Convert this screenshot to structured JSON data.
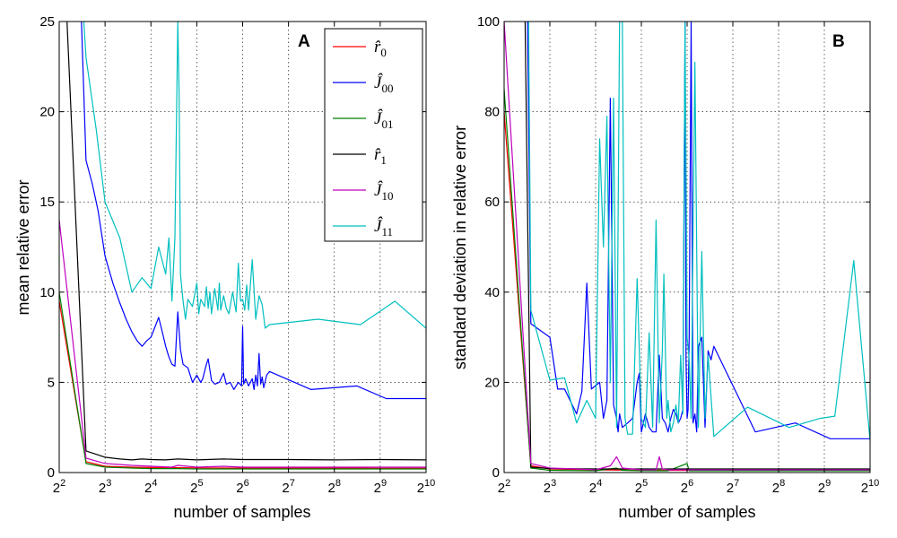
{
  "chart_data": [
    {
      "type": "line",
      "panel_label": "A",
      "xlabel": "number of samples",
      "ylabel": "mean relative error",
      "x_scale": "log2",
      "xlim": [
        4,
        1024
      ],
      "ylim": [
        0,
        25
      ],
      "x_ticks": [
        4,
        8,
        16,
        32,
        64,
        128,
        256,
        512,
        1024
      ],
      "x_tick_labels": [
        {
          "base": "2",
          "exp": "2"
        },
        {
          "base": "2",
          "exp": "3"
        },
        {
          "base": "2",
          "exp": "4"
        },
        {
          "base": "2",
          "exp": "5"
        },
        {
          "base": "2",
          "exp": "6"
        },
        {
          "base": "2",
          "exp": "7"
        },
        {
          "base": "2",
          "exp": "8"
        },
        {
          "base": "2",
          "exp": "9"
        },
        {
          "base": "2",
          "exp": "10"
        }
      ],
      "y_ticks": [
        0,
        5,
        10,
        15,
        20,
        25
      ],
      "y_tick_labels": [
        "0",
        "5",
        "10",
        "15",
        "20",
        "25"
      ],
      "grid": true,
      "legend_position": "top-right",
      "series": [
        {
          "name": "r0",
          "legend": {
            "base": "r̂",
            "sub": "0"
          },
          "color": "#ff0000",
          "x": [
            4,
            6,
            8,
            12,
            16,
            24,
            32,
            64,
            128,
            256,
            512,
            1024
          ],
          "y": [
            9.5,
            0.6,
            0.35,
            0.3,
            0.28,
            0.27,
            0.26,
            0.25,
            0.25,
            0.25,
            0.24,
            0.24
          ]
        },
        {
          "name": "J00",
          "legend": {
            "base": "Ĵ",
            "sub": "00"
          },
          "color": "#0000ff",
          "x": [
            5.6,
            6,
            6.6,
            7.2,
            8,
            9,
            10,
            11,
            12,
            13,
            14,
            15,
            16,
            18,
            19,
            20,
            21,
            22,
            23,
            24,
            25,
            26,
            28,
            30,
            32,
            34,
            35,
            37,
            38,
            40,
            42,
            45,
            48,
            50,
            53,
            56,
            60,
            63,
            64,
            65,
            67,
            70,
            72,
            74,
            76,
            78,
            80,
            82,
            84,
            86,
            88,
            92,
            96,
            180,
            360,
            560,
            1024
          ],
          "y": [
            25,
            17.3,
            16,
            14.5,
            12,
            10.5,
            9.4,
            8.5,
            7.8,
            7.3,
            7.0,
            7.3,
            7.5,
            8.6,
            7.8,
            7.0,
            6.4,
            6.0,
            5.9,
            8.9,
            6.8,
            6.0,
            5.8,
            5.0,
            5.4,
            5.0,
            5.2,
            6.0,
            6.3,
            5.1,
            4.9,
            5.0,
            5.5,
            4.9,
            5.0,
            4.6,
            5.0,
            4.8,
            8.1,
            4.9,
            5.2,
            4.8,
            5.0,
            5.2,
            4.6,
            5.4,
            4.8,
            6.6,
            4.9,
            5.3,
            4.7,
            5.4,
            5.6,
            4.6,
            4.8,
            4.1,
            4.1
          ]
        },
        {
          "name": "J01",
          "legend": {
            "base": "Ĵ",
            "sub": "01"
          },
          "color": "#008000",
          "x": [
            4,
            6,
            8,
            12,
            16,
            24,
            32,
            64,
            128,
            256,
            512,
            1024
          ],
          "y": [
            10.0,
            0.5,
            0.3,
            0.25,
            0.22,
            0.22,
            0.2,
            0.2,
            0.2,
            0.2,
            0.2,
            0.2
          ]
        },
        {
          "name": "r1",
          "legend": {
            "base": "r̂",
            "sub": "1"
          },
          "color": "#000000",
          "x": [
            4.5,
            6,
            8,
            10,
            12,
            14,
            16,
            20,
            24,
            32,
            48,
            64,
            128,
            256,
            512,
            1024
          ],
          "y": [
            25,
            1.2,
            0.85,
            0.75,
            0.7,
            0.75,
            0.72,
            0.7,
            0.75,
            0.7,
            0.75,
            0.72,
            0.72,
            0.7,
            0.72,
            0.7
          ]
        },
        {
          "name": "J10",
          "legend": {
            "base": "Ĵ",
            "sub": "10"
          },
          "color": "#bf00bf",
          "x": [
            4,
            6,
            8,
            12,
            16,
            22,
            24,
            32,
            48,
            64,
            128,
            256,
            512,
            1024
          ],
          "y": [
            14.0,
            0.8,
            0.5,
            0.4,
            0.35,
            0.3,
            0.4,
            0.3,
            0.35,
            0.3,
            0.3,
            0.3,
            0.3,
            0.3
          ]
        },
        {
          "name": "J11",
          "legend": {
            "base": "Ĵ",
            "sub": "11"
          },
          "color": "#00bfbf",
          "x": [
            5.8,
            6,
            7,
            8,
            10,
            12,
            14,
            16,
            18,
            20,
            21,
            22,
            23,
            24,
            24.5,
            25,
            26,
            27,
            28,
            30,
            32,
            33,
            34,
            36,
            37,
            38,
            39,
            40,
            42,
            44,
            45,
            46,
            48,
            50,
            52,
            55,
            58,
            60,
            62,
            64,
            66,
            68,
            70,
            74,
            78,
            82,
            86,
            90,
            96,
            200,
            380,
            640,
            1024
          ],
          "y": [
            25,
            23,
            19,
            15,
            13,
            10.0,
            10.8,
            10.2,
            12.5,
            11.0,
            13.0,
            9.5,
            13.0,
            25,
            21,
            11,
            9.5,
            8.5,
            9.6,
            9.2,
            10.5,
            8.8,
            9.6,
            9.2,
            10.3,
            9.1,
            10.0,
            8.8,
            10.2,
            9.0,
            10.5,
            9.0,
            9.8,
            9.1,
            8.8,
            10.0,
            8.9,
            11.6,
            9.5,
            9.6,
            9.0,
            10.4,
            9.0,
            11.8,
            8.5,
            9.8,
            9.3,
            8.0,
            8.2,
            8.5,
            8.2,
            9.5,
            8.0
          ]
        }
      ]
    },
    {
      "type": "line",
      "panel_label": "B",
      "xlabel": "number of samples",
      "ylabel": "standard deviation in relative error",
      "x_scale": "log2",
      "xlim": [
        4,
        1024
      ],
      "ylim": [
        0,
        100
      ],
      "x_ticks": [
        4,
        8,
        16,
        32,
        64,
        128,
        256,
        512,
        1024
      ],
      "x_tick_labels": [
        {
          "base": "2",
          "exp": "2"
        },
        {
          "base": "2",
          "exp": "3"
        },
        {
          "base": "2",
          "exp": "4"
        },
        {
          "base": "2",
          "exp": "5"
        },
        {
          "base": "2",
          "exp": "6"
        },
        {
          "base": "2",
          "exp": "7"
        },
        {
          "base": "2",
          "exp": "8"
        },
        {
          "base": "2",
          "exp": "9"
        },
        {
          "base": "2",
          "exp": "10"
        }
      ],
      "y_ticks": [
        0,
        20,
        40,
        60,
        80,
        100
      ],
      "y_tick_labels": [
        "0",
        "20",
        "40",
        "60",
        "80",
        "100"
      ],
      "grid": true,
      "series": [
        {
          "name": "r0",
          "color": "#ff0000",
          "x": [
            4,
            6,
            8,
            16,
            32,
            64,
            128,
            256,
            512,
            1024
          ],
          "y": [
            80,
            1.5,
            0.8,
            0.6,
            0.5,
            0.5,
            0.5,
            0.5,
            0.5,
            0.5
          ]
        },
        {
          "name": "J00",
          "color": "#0000ff",
          "x": [
            5.7,
            6,
            8,
            9,
            10,
            12,
            13,
            14,
            15,
            17,
            18,
            19,
            20,
            21,
            22,
            22.5,
            23,
            24,
            26,
            28,
            30,
            31,
            32,
            33,
            34,
            36,
            38,
            40,
            42,
            44,
            46,
            48,
            50,
            52,
            54,
            56,
            58,
            60,
            62,
            63,
            64,
            65,
            66,
            68,
            70,
            72,
            74,
            76,
            80,
            84,
            88,
            92,
            96,
            180,
            330,
            560,
            1024
          ],
          "y": [
            100,
            33,
            30,
            18.5,
            18.5,
            13,
            18,
            42,
            18.5,
            20,
            12,
            16,
            83,
            15,
            12,
            9,
            13,
            10,
            11,
            12,
            20,
            22,
            9,
            11,
            13,
            10,
            9,
            9,
            26,
            12,
            11,
            9,
            12,
            14,
            13,
            11,
            12,
            14,
            100,
            25,
            12,
            14,
            30,
            100,
            11,
            13,
            9,
            28,
            30,
            10,
            27,
            25,
            28,
            9,
            11,
            7.5,
            7.5
          ]
        },
        {
          "name": "J01",
          "color": "#008000",
          "x": [
            4,
            6,
            8,
            16,
            22,
            24,
            32,
            48,
            64,
            66,
            68,
            96,
            128,
            256,
            512,
            1024
          ],
          "y": [
            85,
            1.0,
            0.5,
            0.4,
            1.0,
            0.5,
            0.4,
            0.4,
            2.0,
            0.4,
            0.4,
            0.4,
            0.4,
            0.4,
            0.4,
            0.4
          ]
        },
        {
          "name": "r1",
          "color": "#000000",
          "x": [
            5.5,
            6,
            8,
            16,
            32,
            64,
            128,
            256,
            512,
            1024
          ],
          "y": [
            100,
            1.2,
            0.9,
            0.8,
            0.8,
            0.8,
            0.8,
            0.8,
            0.8,
            0.8
          ]
        },
        {
          "name": "J10",
          "color": "#bf00bf",
          "x": [
            4,
            6,
            8,
            12,
            16,
            20,
            22,
            24,
            32,
            40,
            42,
            44,
            48,
            64,
            96,
            128,
            256,
            512,
            1024
          ],
          "y": [
            100,
            2.0,
            1.0,
            0.8,
            0.6,
            1.5,
            3.5,
            1.0,
            0.6,
            0.6,
            3.5,
            0.8,
            0.6,
            0.6,
            0.6,
            0.6,
            0.6,
            0.6,
            0.6
          ]
        },
        {
          "name": "J11",
          "color": "#00bfbf",
          "x": [
            5.8,
            6,
            8,
            10,
            12,
            14,
            16,
            17,
            18,
            19,
            20,
            21,
            22,
            23,
            24,
            25,
            26,
            28,
            30,
            32,
            34,
            36,
            38,
            40,
            42,
            44,
            45,
            47,
            48,
            50,
            52,
            54,
            56,
            58,
            60,
            62,
            64,
            66,
            68,
            72,
            76,
            80,
            84,
            88,
            96,
            160,
            300,
            480,
            600,
            800,
            1024
          ],
          "y": [
            100,
            36,
            20.5,
            21,
            11,
            16,
            12,
            74,
            50,
            79,
            20,
            83,
            10,
            100,
            100,
            12,
            8.5,
            8.5,
            43,
            12,
            10,
            31,
            10,
            56,
            11,
            27,
            44,
            12,
            16,
            9,
            11,
            15,
            11,
            26,
            13,
            100,
            30,
            25,
            12,
            91,
            10,
            49,
            12,
            26,
            8,
            14.5,
            10,
            12,
            12.5,
            47,
            7
          ]
        }
      ]
    }
  ]
}
